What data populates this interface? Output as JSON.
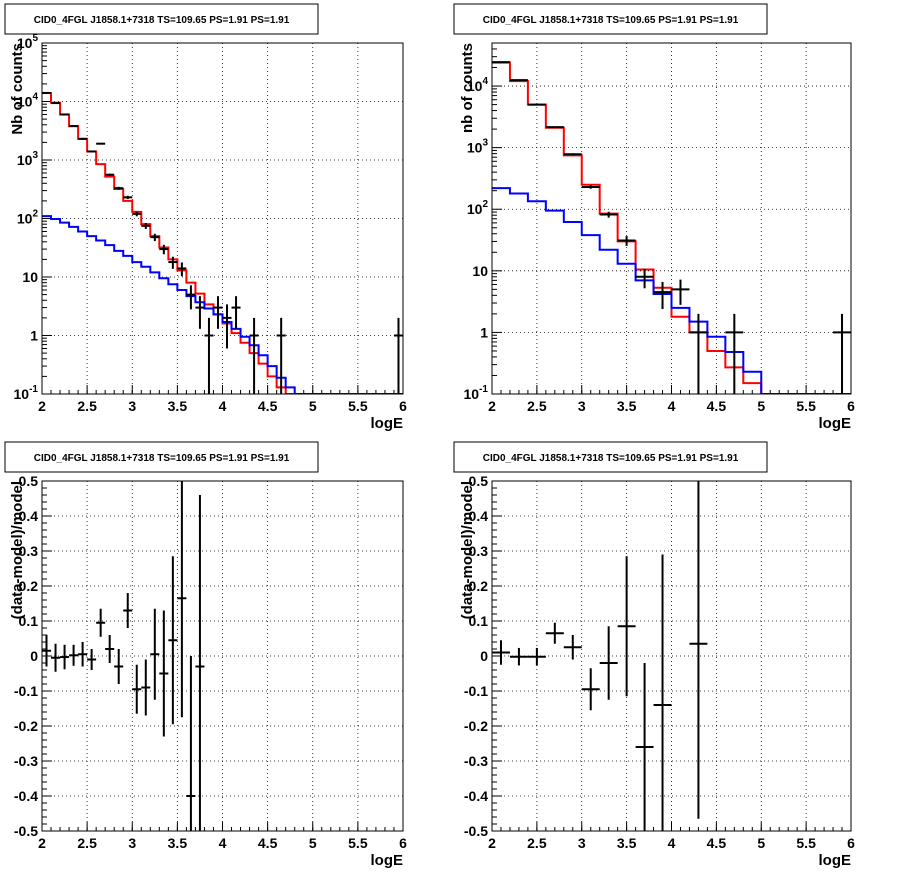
{
  "colors": {
    "data": "#000000",
    "total_model": "#ff0000",
    "background_model": "#0000ff"
  },
  "chart_data": [
    {
      "type": "line",
      "title": "CID0_4FGL J1858.1+7318 TS=109.65 PS=1.91 PS=1.91",
      "xlabel": "logE",
      "ylabel": "Nb of counts",
      "xlim": [
        2,
        6
      ],
      "ylim": [
        0.1,
        100000
      ],
      "yscale": "log",
      "grid": true,
      "x_ticks": [
        "2",
        "2.5",
        "3",
        "3.5",
        "4",
        "4.5",
        "5",
        "5.5",
        "6"
      ],
      "y_ticks": [
        "10^-1",
        "1",
        "10",
        "10^2",
        "10^3",
        "10^4",
        "10^5"
      ],
      "bin_width": 0.1,
      "series": [
        {
          "kind": "histogram",
          "color": "#ff0000",
          "x": [
            2.0,
            2.1,
            2.2,
            2.3,
            2.4,
            2.5,
            2.6,
            2.7,
            2.8,
            2.9,
            3.0,
            3.1,
            3.2,
            3.3,
            3.4,
            3.5,
            3.6,
            3.7,
            3.8,
            3.9,
            4.0,
            4.1,
            4.2,
            4.3,
            4.4,
            4.5,
            4.6,
            4.7,
            4.8,
            4.9,
            5.0,
            5.1,
            5.2,
            5.3,
            5.4,
            5.5,
            5.6,
            5.7,
            5.8,
            5.9
          ],
          "values": [
            14000,
            9500,
            6000,
            3800,
            2300,
            1400,
            850,
            520,
            320,
            200,
            130,
            80,
            50,
            32,
            20,
            13,
            8,
            5.2,
            3.4,
            2.3,
            1.6,
            1.1,
            0.75,
            0.5,
            0.33,
            0.2,
            0.13,
            0.1,
            0.1,
            0.1,
            0.1,
            0.1,
            0.1,
            0.1,
            0.1,
            0.1,
            0.1,
            0.1,
            0.1,
            0.1
          ]
        },
        {
          "kind": "histogram",
          "color": "#0000ff",
          "x": [
            2.0,
            2.1,
            2.2,
            2.3,
            2.4,
            2.5,
            2.6,
            2.7,
            2.8,
            2.9,
            3.0,
            3.1,
            3.2,
            3.3,
            3.4,
            3.5,
            3.6,
            3.7,
            3.8,
            3.9,
            4.0,
            4.1,
            4.2,
            4.3,
            4.4,
            4.5,
            4.6,
            4.7,
            4.8,
            4.9,
            5.0,
            5.1,
            5.2,
            5.3,
            5.4,
            5.5,
            5.6,
            5.7,
            5.8,
            5.9
          ],
          "values": [
            110,
            98,
            85,
            72,
            60,
            50,
            42,
            35,
            28,
            23,
            18,
            15,
            12,
            9.5,
            7.5,
            6,
            4.7,
            3.7,
            2.9,
            2.3,
            1.7,
            1.3,
            0.95,
            0.68,
            0.46,
            0.3,
            0.19,
            0.13,
            0.1,
            0.1,
            0.1,
            0.1,
            0.1,
            0.1,
            0.1,
            0.1,
            0.1,
            0.1,
            0.1,
            0.1
          ]
        },
        {
          "kind": "points",
          "color": "#000000",
          "x": [
            2.05,
            2.15,
            2.25,
            2.35,
            2.45,
            2.55,
            2.65,
            2.75,
            2.85,
            2.95,
            3.05,
            3.15,
            3.25,
            3.35,
            3.45,
            3.55,
            3.65,
            3.75,
            3.85,
            3.95,
            4.05,
            4.15,
            4.35,
            4.65,
            5.95
          ],
          "values": [
            14000,
            9400,
            6000,
            3800,
            2300,
            1400,
            1900,
            560,
            330,
            230,
            120,
            75,
            48,
            30,
            18,
            14,
            5,
            3,
            1,
            3,
            2,
            3,
            1,
            1,
            1
          ],
          "yerr": [
            118,
            97,
            77,
            62,
            48,
            37,
            44,
            24,
            18,
            15,
            11,
            8.7,
            6.9,
            5.5,
            4.2,
            3.7,
            2.2,
            1.7,
            1,
            1.7,
            1.4,
            1.7,
            1,
            1,
            1
          ]
        }
      ]
    },
    {
      "type": "line",
      "title": "CID0_4FGL J1858.1+7318 TS=109.65 PS=1.91 PS=1.91",
      "xlabel": "logE",
      "ylabel": "nb of counts",
      "xlim": [
        2,
        6
      ],
      "ylim": [
        0.1,
        50000
      ],
      "yscale": "log",
      "grid": true,
      "x_ticks": [
        "2",
        "2.5",
        "3",
        "3.5",
        "4",
        "4.5",
        "5",
        "5.5",
        "6"
      ],
      "y_ticks": [
        "10^-1",
        "1",
        "10",
        "10^2",
        "10^3",
        "10^4"
      ],
      "bin_width": 0.2,
      "series": [
        {
          "kind": "histogram",
          "color": "#ff0000",
          "x": [
            2.0,
            2.2,
            2.4,
            2.6,
            2.8,
            3.0,
            3.2,
            3.4,
            3.6,
            3.8,
            4.0,
            4.2,
            4.4,
            4.6,
            4.8,
            5.0,
            5.2,
            5.4,
            5.6,
            5.8
          ],
          "values": [
            24000,
            12000,
            5000,
            2100,
            750,
            250,
            85,
            30,
            10.5,
            5.3,
            1.8,
            1.0,
            0.5,
            0.27,
            0.15,
            0.1,
            0.1,
            0.1,
            0.1,
            0.1
          ]
        },
        {
          "kind": "histogram",
          "color": "#0000ff",
          "x": [
            2.0,
            2.2,
            2.4,
            2.6,
            2.8,
            3.0,
            3.2,
            3.4,
            3.6,
            3.8,
            4.0,
            4.2,
            4.4,
            4.6,
            4.8,
            5.0,
            5.2,
            5.4,
            5.6,
            5.8
          ],
          "values": [
            220,
            180,
            135,
            95,
            62,
            38,
            22,
            13,
            7,
            4.2,
            2.5,
            1.5,
            0.85,
            0.48,
            0.23,
            0.1,
            0.1,
            0.1,
            0.1,
            0.1
          ]
        },
        {
          "kind": "points",
          "color": "#000000",
          "x": [
            2.1,
            2.3,
            2.5,
            2.7,
            2.9,
            3.1,
            3.3,
            3.5,
            3.7,
            3.9,
            4.1,
            4.3,
            4.7,
            5.9
          ],
          "values": [
            24500,
            12500,
            5000,
            2150,
            780,
            230,
            82,
            31,
            8,
            4.5,
            5,
            1,
            1,
            1
          ],
          "yerr": [
            157,
            112,
            71,
            46,
            28,
            15,
            9,
            5.6,
            2.8,
            2.1,
            2.2,
            1,
            1,
            1
          ]
        }
      ]
    },
    {
      "type": "scatter",
      "title": "CID0_4FGL J1858.1+7318 TS=109.65 PS=1.91 PS=1.91",
      "xlabel": "logE",
      "ylabel": "(data-model)/model",
      "xlim": [
        2,
        6
      ],
      "ylim": [
        -0.5,
        0.5
      ],
      "grid": true,
      "x_ticks": [
        "2",
        "2.5",
        "3",
        "3.5",
        "4",
        "4.5",
        "5",
        "5.5",
        "6"
      ],
      "y_ticks": [
        "-0.5",
        "-0.4",
        "-0.3",
        "-0.2",
        "-0.1",
        "0",
        "0.1",
        "0.2",
        "0.3",
        "0.4",
        "0.5"
      ],
      "series": [
        {
          "kind": "points",
          "color": "#000000",
          "xerr": 0.05,
          "x": [
            2.05,
            2.15,
            2.25,
            2.35,
            2.45,
            2.55,
            2.65,
            2.75,
            2.85,
            2.95,
            3.05,
            3.15,
            3.25,
            3.35,
            3.45,
            3.55,
            3.65,
            3.75
          ],
          "values": [
            0.015,
            -0.005,
            -0.003,
            0.002,
            0.005,
            -0.01,
            0.095,
            0.02,
            -0.03,
            0.13,
            -0.095,
            -0.09,
            0.005,
            -0.05,
            0.045,
            0.165,
            -0.4,
            -0.03
          ],
          "yerr": [
            0.045,
            0.04,
            0.035,
            0.03,
            0.035,
            0.03,
            0.04,
            0.04,
            0.05,
            0.05,
            0.07,
            0.08,
            0.13,
            0.18,
            0.24,
            0.34,
            0.4,
            0.49
          ]
        }
      ]
    },
    {
      "type": "scatter",
      "title": "CID0_4FGL J1858.1+7318 TS=109.65 PS=1.91 PS=1.91",
      "xlabel": "logE",
      "ylabel": "(data-model)/model",
      "xlim": [
        2,
        6
      ],
      "ylim": [
        -0.5,
        0.5
      ],
      "grid": true,
      "x_ticks": [
        "2",
        "2.5",
        "3",
        "3.5",
        "4",
        "4.5",
        "5",
        "5.5",
        "6"
      ],
      "y_ticks": [
        "-0.5",
        "-0.4",
        "-0.3",
        "-0.2",
        "-0.1",
        "0",
        "0.1",
        "0.2",
        "0.3",
        "0.4",
        "0.5"
      ],
      "series": [
        {
          "kind": "points",
          "color": "#000000",
          "xerr": 0.1,
          "x": [
            2.1,
            2.3,
            2.5,
            2.7,
            2.9,
            3.1,
            3.3,
            3.5,
            3.7,
            3.9,
            4.3
          ],
          "values": [
            0.01,
            -0.002,
            -0.002,
            0.065,
            0.025,
            -0.095,
            -0.02,
            0.085,
            -0.26,
            -0.14,
            0.035
          ],
          "yerr": [
            0.035,
            0.025,
            0.025,
            0.03,
            0.035,
            0.06,
            0.105,
            0.2,
            0.24,
            0.43,
            0.5
          ]
        }
      ]
    }
  ]
}
